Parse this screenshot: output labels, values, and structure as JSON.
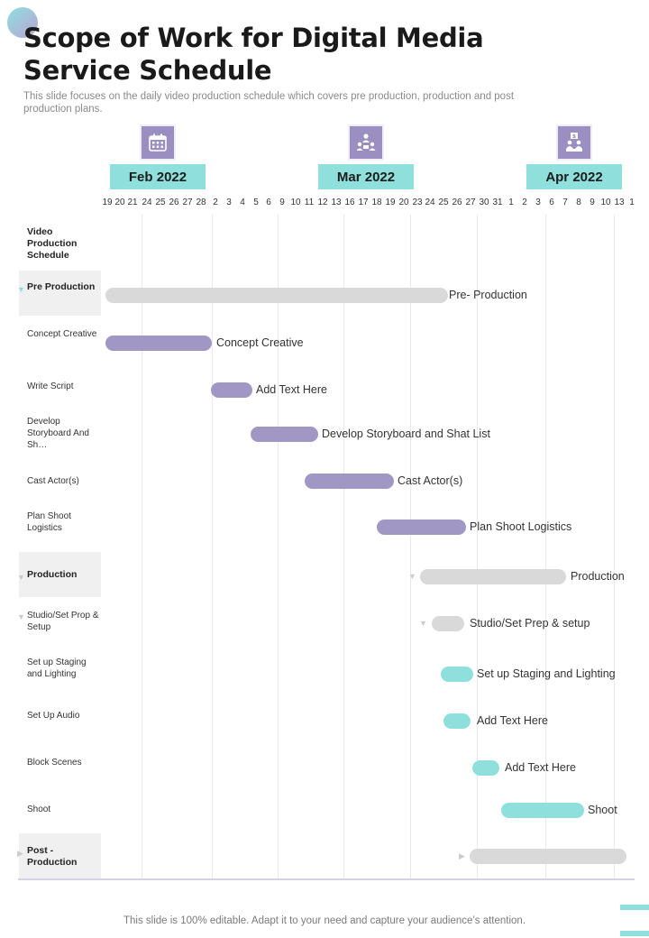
{
  "title": "Scope of Work for Digital Media Service Schedule",
  "subtitle": "This slide focuses on the daily video production schedule which covers pre production, production and post production plans.",
  "months": [
    {
      "label": "Feb 2022",
      "icon": "calendar-icon"
    },
    {
      "label": "Mar 2022",
      "icon": "team-meeting-icon"
    },
    {
      "label": "Apr 2022",
      "icon": "dollar-team-icon"
    }
  ],
  "days": [
    "19",
    "20",
    "21",
    "24",
    "25",
    "26",
    "27",
    "28",
    "2",
    "3",
    "4",
    "5",
    "6",
    "9",
    "10",
    "11",
    "12",
    "13",
    "16",
    "17",
    "18",
    "19",
    "20",
    "23",
    "24",
    "25",
    "26",
    "27",
    "30",
    "31",
    "1",
    "2",
    "3",
    "6",
    "7",
    "8",
    "9",
    "10",
    "13",
    "1"
  ],
  "column_header": "Video Production Schedule",
  "tasks": [
    {
      "label": "Pre Production",
      "group": true,
      "bar_label": "Pre- Production"
    },
    {
      "label": "Concept Creative",
      "group": false,
      "bar_label": "Concept Creative"
    },
    {
      "label": "Write Script",
      "group": false,
      "bar_label": "Add Text Here"
    },
    {
      "label": "Develop Storyboard And Sh…",
      "group": false,
      "bar_label": "Develop  Storyboard  and Shat List"
    },
    {
      "label": "Cast Actor(s)",
      "group": false,
      "bar_label": "Cast Actor(s)"
    },
    {
      "label": "Plan Shoot Logistics",
      "group": false,
      "bar_label": "Plan Shoot Logistics"
    },
    {
      "label": "Production",
      "group": true,
      "bar_label": "Production"
    },
    {
      "label": "Studio/Set Prop & Setup",
      "group": false,
      "bar_label": "Studio/Set Prep & setup"
    },
    {
      "label": "Set up Staging and Lighting",
      "group": false,
      "bar_label": "Set up Staging and Lighting"
    },
    {
      "label": "Set Up Audio",
      "group": false,
      "bar_label": "Add Text Here"
    },
    {
      "label": "Block Scenes",
      "group": false,
      "bar_label": "Add Text Here"
    },
    {
      "label": "Shoot",
      "group": false,
      "bar_label": "Shoot"
    },
    {
      "label": "Post - Production",
      "group": true,
      "bar_label": ""
    }
  ],
  "footer": "This slide is 100% editable. Adapt it to your need and capture your audience’s attention.",
  "colors": {
    "purple": "#a097c4",
    "teal": "#8fe0dd",
    "grey": "#d9d9d9",
    "icon_bg": "#9a8fc0"
  }
}
